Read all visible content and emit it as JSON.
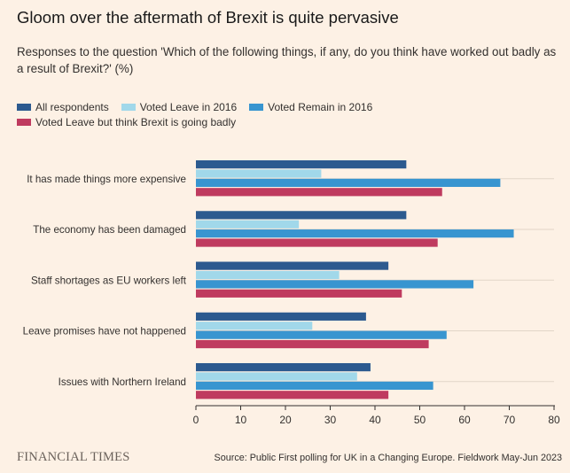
{
  "header": {
    "title": "Gloom over the aftermath of Brexit is quite pervasive",
    "subtitle": "Responses to the question 'Which of the following things, if any, do you think have worked out badly as a result of Brexit?' (%)"
  },
  "footer": {
    "brand": "FINANCIAL TIMES",
    "source": "Source: Public First polling for UK in a Changing Europe. Fieldwork May-Jun 2023"
  },
  "chart_data": {
    "type": "bar",
    "orientation": "horizontal",
    "title": "Gloom over the aftermath of Brexit is quite pervasive",
    "subtitle": "Responses to the question 'Which of the following things, if any, do you think have worked out badly as a result of Brexit?' (%)",
    "xlabel": "",
    "ylabel": "",
    "xlim": [
      0,
      80
    ],
    "xticks": [
      0,
      10,
      20,
      30,
      40,
      50,
      60,
      70,
      80
    ],
    "grid": true,
    "legend_position": "top-left",
    "categories": [
      "It has made things more expensive",
      "The economy has been damaged",
      "Staff shortages as EU workers left",
      "Leave promises have not happened",
      "Issues with Northern Ireland"
    ],
    "series": [
      {
        "name": "All respondents",
        "color": "#2c5a8f",
        "values": [
          47,
          47,
          43,
          38,
          39
        ]
      },
      {
        "name": "Voted Leave in 2016",
        "color": "#a1d8ea",
        "values": [
          28,
          23,
          32,
          26,
          36
        ]
      },
      {
        "name": "Voted Remain in 2016",
        "color": "#3895d0",
        "values": [
          68,
          71,
          62,
          56,
          53
        ]
      },
      {
        "name": "Voted Leave but think Brexit is going badly",
        "color": "#bf3b5f",
        "values": [
          55,
          54,
          46,
          52,
          43
        ]
      }
    ]
  }
}
